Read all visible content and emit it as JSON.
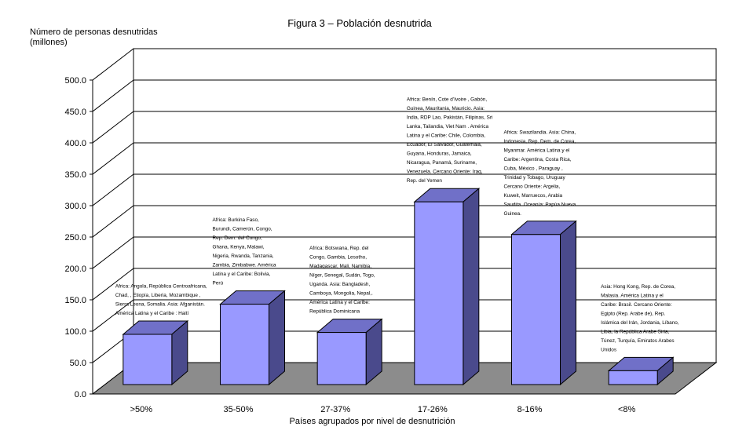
{
  "chart_data": {
    "type": "bar",
    "title": "Figura 3 – Población desnutrida",
    "ylabel": "Número de personas desnutridas (millones)",
    "ylabel_lines": [
      "Número de personas desnutridas",
      "(millones)"
    ],
    "xlabel": "Países agrupados por nivel de desnutrición",
    "ylim": [
      0,
      500
    ],
    "yticks": [
      "0.0",
      "50.0",
      "100.0",
      "150.0",
      "200.0",
      "250.0",
      "300.0",
      "350.0",
      "400.0",
      "450.0",
      "500.0"
    ],
    "grid": true,
    "categories": [
      ">50%",
      "35-50%",
      "27-37%",
      "17-26%",
      "8-16%",
      "<8%"
    ],
    "values": [
      80,
      128,
      83,
      291,
      239,
      22
    ],
    "annotations": [
      [
        "Africa: Angola, República Centroafricana,",
        "Chad, , Etiopía, Liberia, Mozambique ,",
        "Sierra Leona, Somalia. Asia: Afganistán.",
        "América Latina y el Caribe : Haití"
      ],
      [
        "Africa: Burkina Faso,",
        "Burundi, Camerún, Congo,",
        "Rep. Dem. del Congo,",
        "Ghana, Kenya, Malawi,",
        "Nigeria, Rwanda, Tanzania,",
        "Zambia, Zimbabwe. América",
        "Latina y el Caribe: Bolivia,",
        "Perú"
      ],
      [
        "Africa: Botswana, Rep. del",
        "Congo, Gambia, Lesotho,",
        "Madagascar, Mali, Namibia,",
        "Níger, Senegal, Sudán, Togo,",
        "Uganda. Asia: Bangladesh,",
        "Camboya, Mongolia, Nepal,.",
        "América Latina y el Caribe:",
        "República Dominicana"
      ],
      [
        "Africa: Benín, Cote d’Ivoire , Gabón,",
        "Guinea, Mauritania, Mauricio. Asia:",
        "India, RDP Lao, Pakistán, Filipinas, Sri",
        "Lanka, Tailandia, Viet Nam . América",
        "Latina y el Caribe: Chile, Colombia,",
        "Ecuador, El Salvador, Guatemala,",
        "Guyana, Honduras, Jamaica,",
        "Nicaragua, Panamá, Suriname,",
        "Venezuela. Cercano Oriente: Iraq,",
        "Rep. del Yemen"
      ],
      [
        "Africa: Swazilandia. Asia: China,",
        "Indonesia, Rep. Dem. de Corea,",
        "Myanmar. América Latina y el",
        "Caribe: Argentina, Costa Rica,",
        "Cuba, México , Paraguay ,",
        "Trinidad y Tobago, Uruguay",
        "Cercano Oriente: Argelia,",
        "Kuweit, Marruecos, Arabia",
        "Saudita. Oceanía: Papúa Nueva",
        "Guinea."
      ],
      [
        "Asia: Hong Kong, Rep. de Corea,",
        "Malasia. América Latina y el",
        "Caribe: Brasil. Cercano Oriente:",
        "Egipto (Rep. Arabe de), Rep.",
        "Islámica del Irán, Jordania, Líbano,",
        "Libia, la República Arabe Siria,",
        "Túnez, Turquía, Emiratos Arabes",
        "Unidos"
      ]
    ]
  },
  "colors": {
    "bar_front": "#9999ff",
    "bar_side": "#4a4a8c",
    "bar_top": "#7070c8",
    "floor": "#8c8c8c",
    "grid": "#000000",
    "text": "#000000"
  }
}
